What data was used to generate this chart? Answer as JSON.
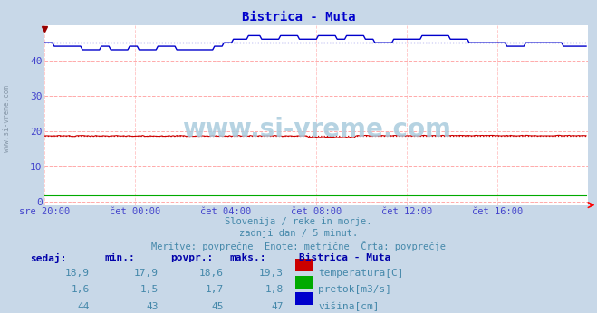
{
  "title": "Bistrica - Muta",
  "bg_color": "#c8d8e8",
  "plot_bg_color": "#ffffff",
  "grid_color_h": "#ffaaaa",
  "grid_color_v": "#ffcccc",
  "tick_color": "#4444cc",
  "title_color": "#0000cc",
  "subtitle_lines": [
    "Slovenija / reke in morje.",
    "zadnji dan / 5 minut.",
    "Meritve: povprečne  Enote: metrične  Črta: povprečje"
  ],
  "subtitle_color": "#4488aa",
  "watermark": "www.si-vreme.com",
  "watermark_color": "#aaccdd",
  "xtick_labels": [
    "sre 20:00",
    "čet 00:00",
    "čet 04:00",
    "čet 08:00",
    "čet 12:00",
    "čet 16:00"
  ],
  "xtick_positions": [
    0,
    48,
    96,
    144,
    192,
    240
  ],
  "ytick_positions": [
    0,
    10,
    20,
    30,
    40
  ],
  "ylim": [
    -1,
    50
  ],
  "xlim": [
    0,
    288
  ],
  "n_points": 288,
  "temp_avg": 18.6,
  "flow_avg": 1.7,
  "height_avg": 45,
  "temp_color": "#cc0000",
  "flow_color": "#00aa00",
  "height_color": "#0000cc",
  "legend_title": "Bistrica - Muta",
  "legend_items": [
    {
      "label": "temperatura[C]",
      "color": "#cc0000"
    },
    {
      "label": "pretok[m3/s]",
      "color": "#00aa00"
    },
    {
      "label": "višina[cm]",
      "color": "#0000cc"
    }
  ],
  "table_headers": [
    "sedaj:",
    "min.:",
    "povpr.:",
    "maks.:"
  ],
  "table_rows": [
    [
      "18,9",
      "17,9",
      "18,6",
      "19,3"
    ],
    [
      "1,6",
      "1,5",
      "1,7",
      "1,8"
    ],
    [
      "44",
      "43",
      "45",
      "47"
    ]
  ],
  "left_watermark": "www.si-vreme.com",
  "left_watermark_color": "#8899aa"
}
